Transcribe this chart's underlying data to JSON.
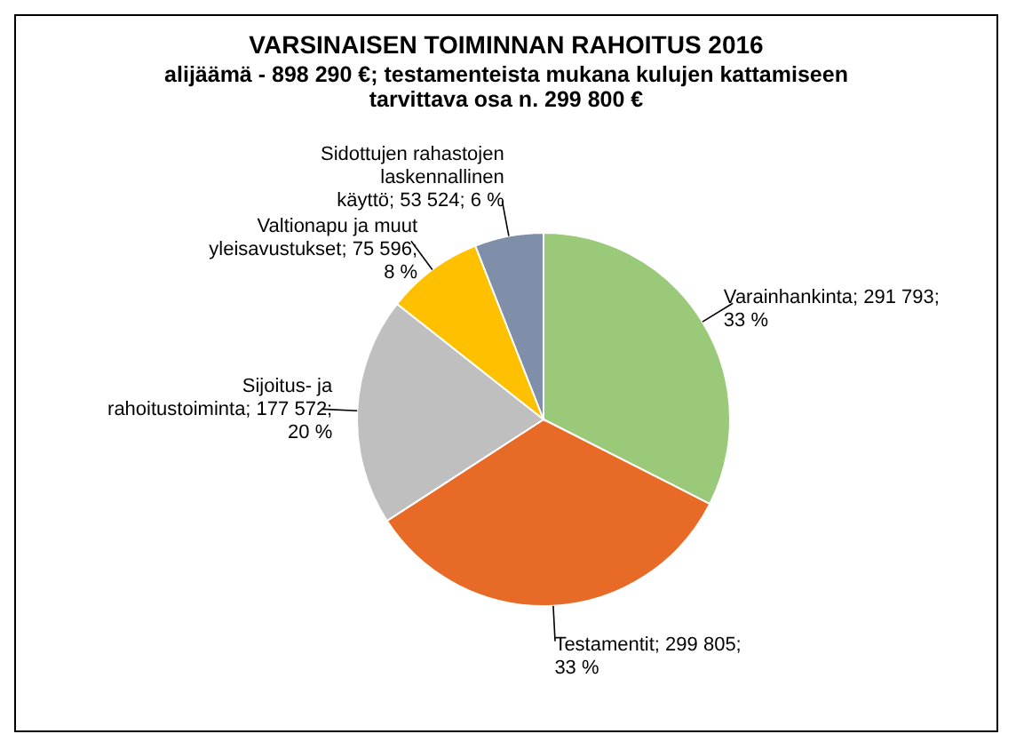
{
  "chart_data": {
    "type": "pie",
    "title": "VARSINAISEN TOIMINNAN RAHOITUS 2016",
    "subtitle": "alijäämä - 898 290 €; testamenteista mukana kulujen kattamiseen tarvittava osa n. 299 800 €",
    "categories": [
      "Varainhankinta",
      "Testamentit",
      "Sijoitus- ja rahoitustoiminta",
      "Valtionapu ja muut yleisavustukset",
      "Sidottujen rahastojen laskennallinen käyttö"
    ],
    "values": [
      291793,
      299805,
      177572,
      75596,
      53524
    ],
    "colors": [
      "#9bc97a",
      "#e86a27",
      "#bfbfbf",
      "#ffc000",
      "#7f8fa9"
    ],
    "value_labels": [
      "291 793; 33 %",
      "299 805; 33 %",
      "177 572; 20 %",
      "75 596; 8 %",
      "53 524; 6 %"
    ]
  }
}
